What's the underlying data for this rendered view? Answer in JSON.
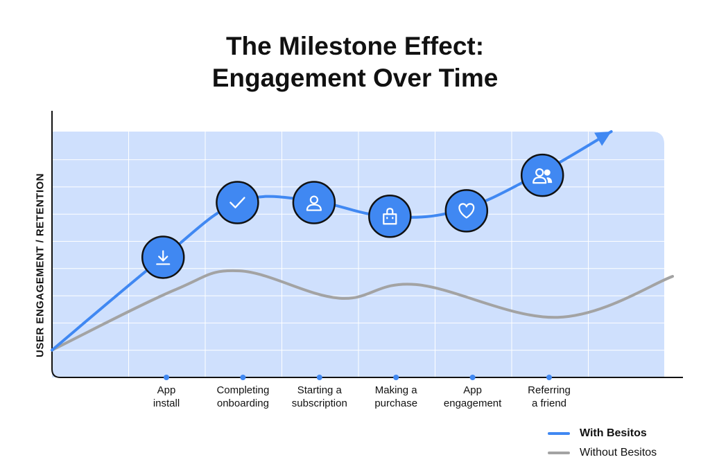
{
  "title_line1": "The Milestone Effect:",
  "title_line2": "Engagement Over Time",
  "chart_data": {
    "type": "line",
    "title": "The Milestone Effect: Engagement Over Time",
    "ylabel": "USER ENGAGEMENT / RETENTION",
    "xlabel": "",
    "grid": true,
    "legend_position": "bottom-right",
    "x": [
      0,
      1,
      2,
      3,
      4,
      5,
      6,
      7,
      8
    ],
    "categories": [
      "",
      "App install",
      "Completing onboarding",
      "Starting a subscription",
      "Making a purchase",
      "App engagement",
      "Referring a friend",
      "",
      ""
    ],
    "ylim": [
      0,
      9
    ],
    "series": [
      {
        "name": "With Besitos",
        "color": "#4088f2",
        "values": [
          1.0,
          4.4,
          6.4,
          6.5,
          5.9,
          6.1,
          7.4,
          9.0
        ],
        "x": [
          0,
          1.45,
          2.42,
          3.33,
          4.35,
          5.3,
          6.32,
          7.3
        ],
        "arrow": true
      },
      {
        "name": "Without Besitos",
        "color": "#a3a3a3",
        "values": [
          1.0,
          3.2,
          3.9,
          2.9,
          3.4,
          2.2,
          3.7
        ],
        "x": [
          0,
          1.6,
          2.45,
          3.75,
          4.75,
          6.6,
          8.1
        ],
        "arrow": false
      }
    ],
    "milestones": [
      {
        "label": "App install",
        "icon": "download-icon",
        "x": 1.45,
        "y": 4.4
      },
      {
        "label": "Completing onboarding",
        "icon": "check-icon",
        "x": 2.42,
        "y": 6.4
      },
      {
        "label": "Starting a subscription",
        "icon": "user-icon",
        "x": 3.42,
        "y": 6.4
      },
      {
        "label": "Making a purchase",
        "icon": "shopping-bag-icon",
        "x": 4.41,
        "y": 5.9
      },
      {
        "label": "App engagement",
        "icon": "heart-icon",
        "x": 5.41,
        "y": 6.1
      },
      {
        "label": "Referring a friend",
        "icon": "users-icon",
        "x": 6.4,
        "y": 7.4
      }
    ],
    "category_labels": [
      {
        "x": 1.5,
        "lines": [
          "App",
          "install"
        ]
      },
      {
        "x": 2.5,
        "lines": [
          "Completing",
          "onboarding"
        ]
      },
      {
        "x": 3.5,
        "lines": [
          "Starting a",
          "subscription"
        ]
      },
      {
        "x": 4.5,
        "lines": [
          "Making a",
          "purchase"
        ]
      },
      {
        "x": 5.5,
        "lines": [
          "App",
          "engagement"
        ]
      },
      {
        "x": 6.5,
        "lines": [
          "Referring",
          "a friend"
        ]
      }
    ]
  },
  "legend": [
    {
      "label": "With Besitos",
      "color": "#4088f2",
      "bold": true
    },
    {
      "label": "Without Besitos",
      "color": "#a3a3a3",
      "bold": false
    }
  ],
  "colors": {
    "plot_background": "#cfe0fd",
    "grid": "#ffffff",
    "accent": "#4088f2",
    "axis": "#111111"
  }
}
